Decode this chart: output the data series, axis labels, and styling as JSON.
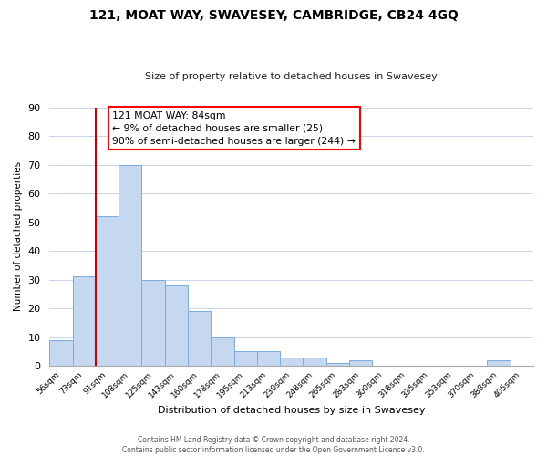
{
  "title": "121, MOAT WAY, SWAVESEY, CAMBRIDGE, CB24 4GQ",
  "subtitle": "Size of property relative to detached houses in Swavesey",
  "xlabel": "Distribution of detached houses by size in Swavesey",
  "ylabel": "Number of detached properties",
  "bin_labels": [
    "56sqm",
    "73sqm",
    "91sqm",
    "108sqm",
    "125sqm",
    "143sqm",
    "160sqm",
    "178sqm",
    "195sqm",
    "213sqm",
    "230sqm",
    "248sqm",
    "265sqm",
    "283sqm",
    "300sqm",
    "318sqm",
    "335sqm",
    "353sqm",
    "370sqm",
    "388sqm",
    "405sqm"
  ],
  "bar_heights": [
    9,
    31,
    52,
    70,
    30,
    28,
    19,
    10,
    5,
    5,
    3,
    3,
    1,
    2,
    0,
    0,
    0,
    0,
    0,
    2,
    0
  ],
  "bar_color": "#c5d8f0",
  "bar_edge_color": "#7aabe0",
  "vline_x": 1.5,
  "vline_color": "#cc0000",
  "ylim": [
    0,
    90
  ],
  "yticks": [
    0,
    10,
    20,
    30,
    40,
    50,
    60,
    70,
    80,
    90
  ],
  "annotation_line1": "121 MOAT WAY: 84sqm",
  "annotation_line2": "← 9% of detached houses are smaller (25)",
  "annotation_line3": "90% of semi-detached houses are larger (244) →",
  "footer_text": "Contains HM Land Registry data © Crown copyright and database right 2024.\nContains public sector information licensed under the Open Government Licence v3.0.",
  "background_color": "#ffffff",
  "grid_color": "#c8d4e8"
}
